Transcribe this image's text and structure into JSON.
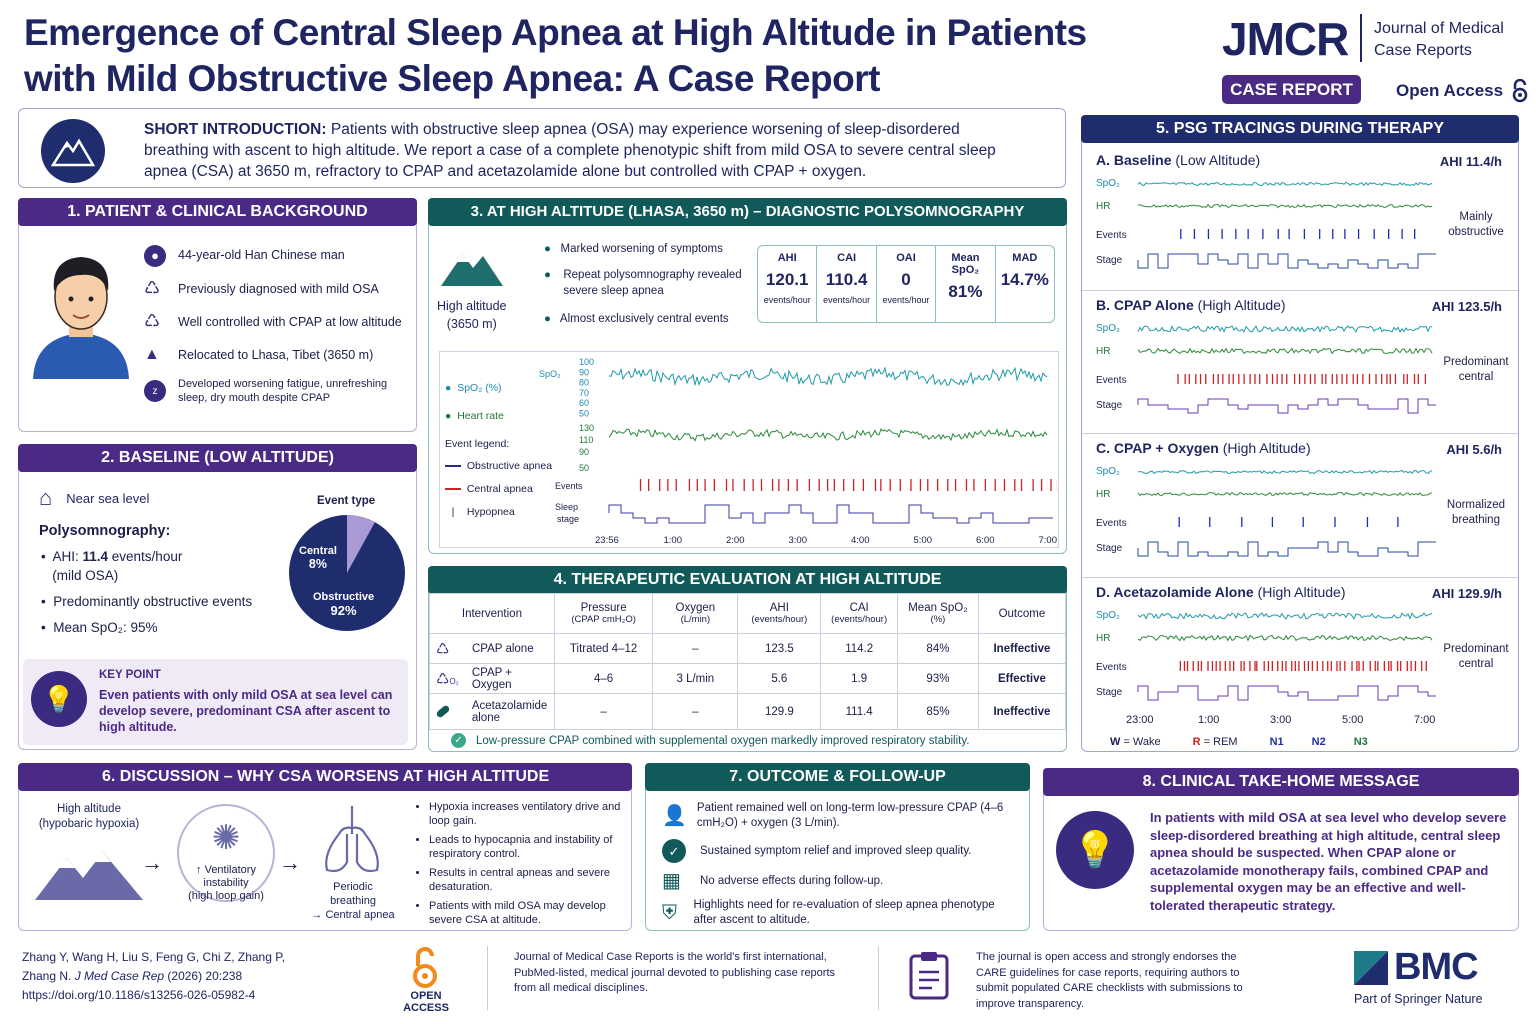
{
  "title": "Emergence of Central Sleep Apnea at High Altitude in Patients with Mild Obstructive Sleep Apnea: A Case Report",
  "journal": {
    "abbr": "JMCR",
    "name": "Journal of Medical Case Reports",
    "badge": "CASE REPORT",
    "open_access": "Open Access"
  },
  "intro": {
    "label": "SHORT INTRODUCTION:",
    "text": "Patients with obstructive sleep apnea (OSA) may experience worsening of sleep-disordered breathing with ascent to high altitude. We report a case of a complete phenotypic shift from mild OSA to severe central sleep apnea (CSA) at 3650 m, refractory to CPAP and acetazolamide alone but controlled with CPAP + oxygen."
  },
  "s1": {
    "title": "1. PATIENT & CLINICAL BACKGROUND",
    "items": [
      "44-year-old Han Chinese man",
      "Previously diagnosed with mild OSA",
      "Well controlled with CPAP at low altitude",
      "Relocated to Lhasa, Tibet (3650 m)",
      "Developed worsening fatigue, unrefreshing sleep, dry mouth despite CPAP"
    ]
  },
  "s2": {
    "title": "2. BASELINE (LOW ALTITUDE)",
    "near": "Near sea level",
    "psg": "Polysomnography:",
    "b1a": "AHI: ",
    "b1b": "11.4",
    "b1c": " events/hour",
    "b1d": "(mild OSA)",
    "b2": "Predominantly obstructive events",
    "b3": "Mean SpO₂: 95%",
    "pie_title": "Event type",
    "central": "Central",
    "central_pct": "8%",
    "obstructive": "Obstructive",
    "obstructive_pct": "92%",
    "central_frac": 0.08,
    "key_label": "KEY POINT",
    "key_text": "Even patients with only mild OSA at sea level can develop severe, predominant CSA after ascent to high altitude."
  },
  "s3": {
    "title": "3. AT HIGH ALTITUDE (LHASA, 3650 m) – DIAGNOSTIC POLYSOMNOGRAPHY",
    "alt": "High altitude",
    "alt2": "(3650 m)",
    "bullets": [
      "Marked worsening of symptoms",
      "Repeat polysomnography revealed severe sleep apnea",
      "Almost exclusively central events"
    ],
    "stats": [
      {
        "k": "AHI",
        "v": "120.1",
        "u": "events/hour"
      },
      {
        "k": "CAI",
        "v": "110.4",
        "u": "events/hour"
      },
      {
        "k": "OAI",
        "v": "0",
        "u": "events/hour"
      },
      {
        "k": "Mean SpO₂",
        "v": "81%",
        "u": ""
      },
      {
        "k": "MAD",
        "v": "14.7%",
        "u": ""
      }
    ],
    "legend": {
      "spo2": "SpO₂ (%)",
      "hr": "Heart rate",
      "ev": "Event legend:",
      "oa": "Obstructive apnea",
      "ca": "Central apnea",
      "hy": "Hypopnea"
    },
    "axis": {
      "spo2": "SpO₂",
      "spo2_ticks": [
        "100",
        "90",
        "80",
        "70",
        "60",
        "50"
      ],
      "hr_ticks": [
        "130",
        "110",
        "90",
        "50"
      ],
      "events": "Events",
      "sleep": "Sleep",
      "stage": "stage",
      "times": [
        "23:56",
        "1:00",
        "2:00",
        "3:00",
        "4:00",
        "5:00",
        "6:00",
        "7:00"
      ]
    }
  },
  "s4": {
    "title": "4.  THERAPEUTIC EVALUATION AT HIGH ALTITUDE",
    "headers": [
      [
        "Intervention",
        ""
      ],
      [
        "Pressure",
        "(CPAP cmH₂O)"
      ],
      [
        "Oxygen",
        "(L/min)"
      ],
      [
        "AHI",
        "(events/hour)"
      ],
      [
        "CAI",
        "(events/hour)"
      ],
      [
        "Mean SpO₂",
        "(%)"
      ],
      [
        "Outcome",
        ""
      ]
    ],
    "rows": [
      [
        "CPAP alone",
        "Titrated 4–12",
        "–",
        "123.5",
        "114.2",
        "84%",
        "Ineffective"
      ],
      [
        "CPAP + Oxygen",
        "4–6",
        "3 L/min",
        "5.6",
        "1.9",
        "93%",
        "Effective"
      ],
      [
        "Acetazolamide alone",
        "–",
        "–",
        "129.9",
        "111.4",
        "85%",
        "Ineffective"
      ]
    ],
    "note": "Low-pressure CPAP combined with supplemental oxygen markedly improved respiratory stability.",
    "o2": "O₂"
  },
  "s5": {
    "title": "5. PSG TRACINGS DURING THERAPY",
    "panels": [
      {
        "name": "A. Baseline",
        "cond": "(Low Altitude)",
        "ahi": "AHI 11.4/h",
        "note": "Mainly obstructive"
      },
      {
        "name": "B. CPAP Alone",
        "cond": "(High Altitude)",
        "ahi": "AHI 123.5/h",
        "note": "Predominant central"
      },
      {
        "name": "C. CPAP + Oxygen",
        "cond": "(High Altitude)",
        "ahi": "AHI 5.6/h",
        "note": "Normalized breathing"
      },
      {
        "name": "D. Acetazolamide Alone",
        "cond": "(High Altitude)",
        "ahi": "AHI 129.9/h",
        "note": "Predominant central"
      }
    ],
    "labels": {
      "spo2": "SpO₂",
      "hr": "HR",
      "events": "Events",
      "stage": "Stage"
    },
    "times": [
      "23:00",
      "1:00",
      "3:00",
      "5:00",
      "7:00"
    ],
    "legend": [
      {
        "a": "W",
        "b": " = Wake"
      },
      {
        "a": "R",
        "b": " = REM"
      },
      {
        "a": "N1",
        "b": ""
      },
      {
        "a": "N2",
        "b": ""
      },
      {
        "a": "N3",
        "b": ""
      }
    ]
  },
  "s6": {
    "title": "6.  DISCUSSION – WHY CSA WORSENS AT HIGH ALTITUDE",
    "alt": "High altitude",
    "alt2": "(hypobaric hypoxia)",
    "vent": "↑ Ventilatory",
    "vent2": "instability",
    "vent3": "(high loop gain)",
    "per": "Periodic",
    "per2": "breathing",
    "per3": "→ Central apnea",
    "bullets": [
      "Hypoxia increases ventilatory drive and loop gain.",
      "Leads to hypocapnia and instability of respiratory control.",
      "Results in central apneas and severe desaturation.",
      "Patients with mild OSA may develop severe CSA at altitude."
    ]
  },
  "s7": {
    "title": "7. OUTCOME & FOLLOW-UP",
    "items": [
      "Patient remained well on long-term low-pressure CPAP (4–6 cmH₂O) + oxygen (3 L/min).",
      "Sustained symptom relief and improved sleep quality.",
      "No adverse effects during follow-up.",
      "Highlights need for re-evaluation of sleep apnea phenotype after ascent to altitude."
    ]
  },
  "s8": {
    "title": "8.  CLINICAL TAKE-HOME MESSAGE",
    "text": "In patients with mild OSA at sea level who develop severe sleep-disordered breathing at high altitude, central sleep apnea should be suspected. When CPAP alone or acetazolamide monotherapy fails, combined CPAP and supplemental oxygen may be an effective and well-tolerated therapeutic strategy."
  },
  "footer": {
    "cite1": "Zhang Y, Wang H, Liu S, Feng G, Chi Z, Zhang P,",
    "cite2a": "Zhang N. ",
    "cite2b": "J Med Case Rep",
    "cite2c": " (2026) 20:238",
    "doi": "https://doi.org/10.1186/s13256-026-05982-4",
    "oa1": "OPEN",
    "oa2": "ACCESS",
    "about": "Journal of Medical Case Reports is the world's first international, PubMed-listed, medical journal devoted to publishing case reports from all medical disciplines.",
    "care": "The journal is open access and strongly endorses the CARE guidelines for case reports, requiring authors to submit populated CARE checklists with submissions to improve transparency.",
    "bmc": "BMC",
    "springer": "Part of Springer Nature"
  },
  "colors": {
    "purple": "#4b2a86",
    "teal": "#125a5a",
    "navy": "#1f2d6e",
    "red": "#d02020",
    "green": "#1f8a3a",
    "cyan": "#1f9aa8"
  }
}
